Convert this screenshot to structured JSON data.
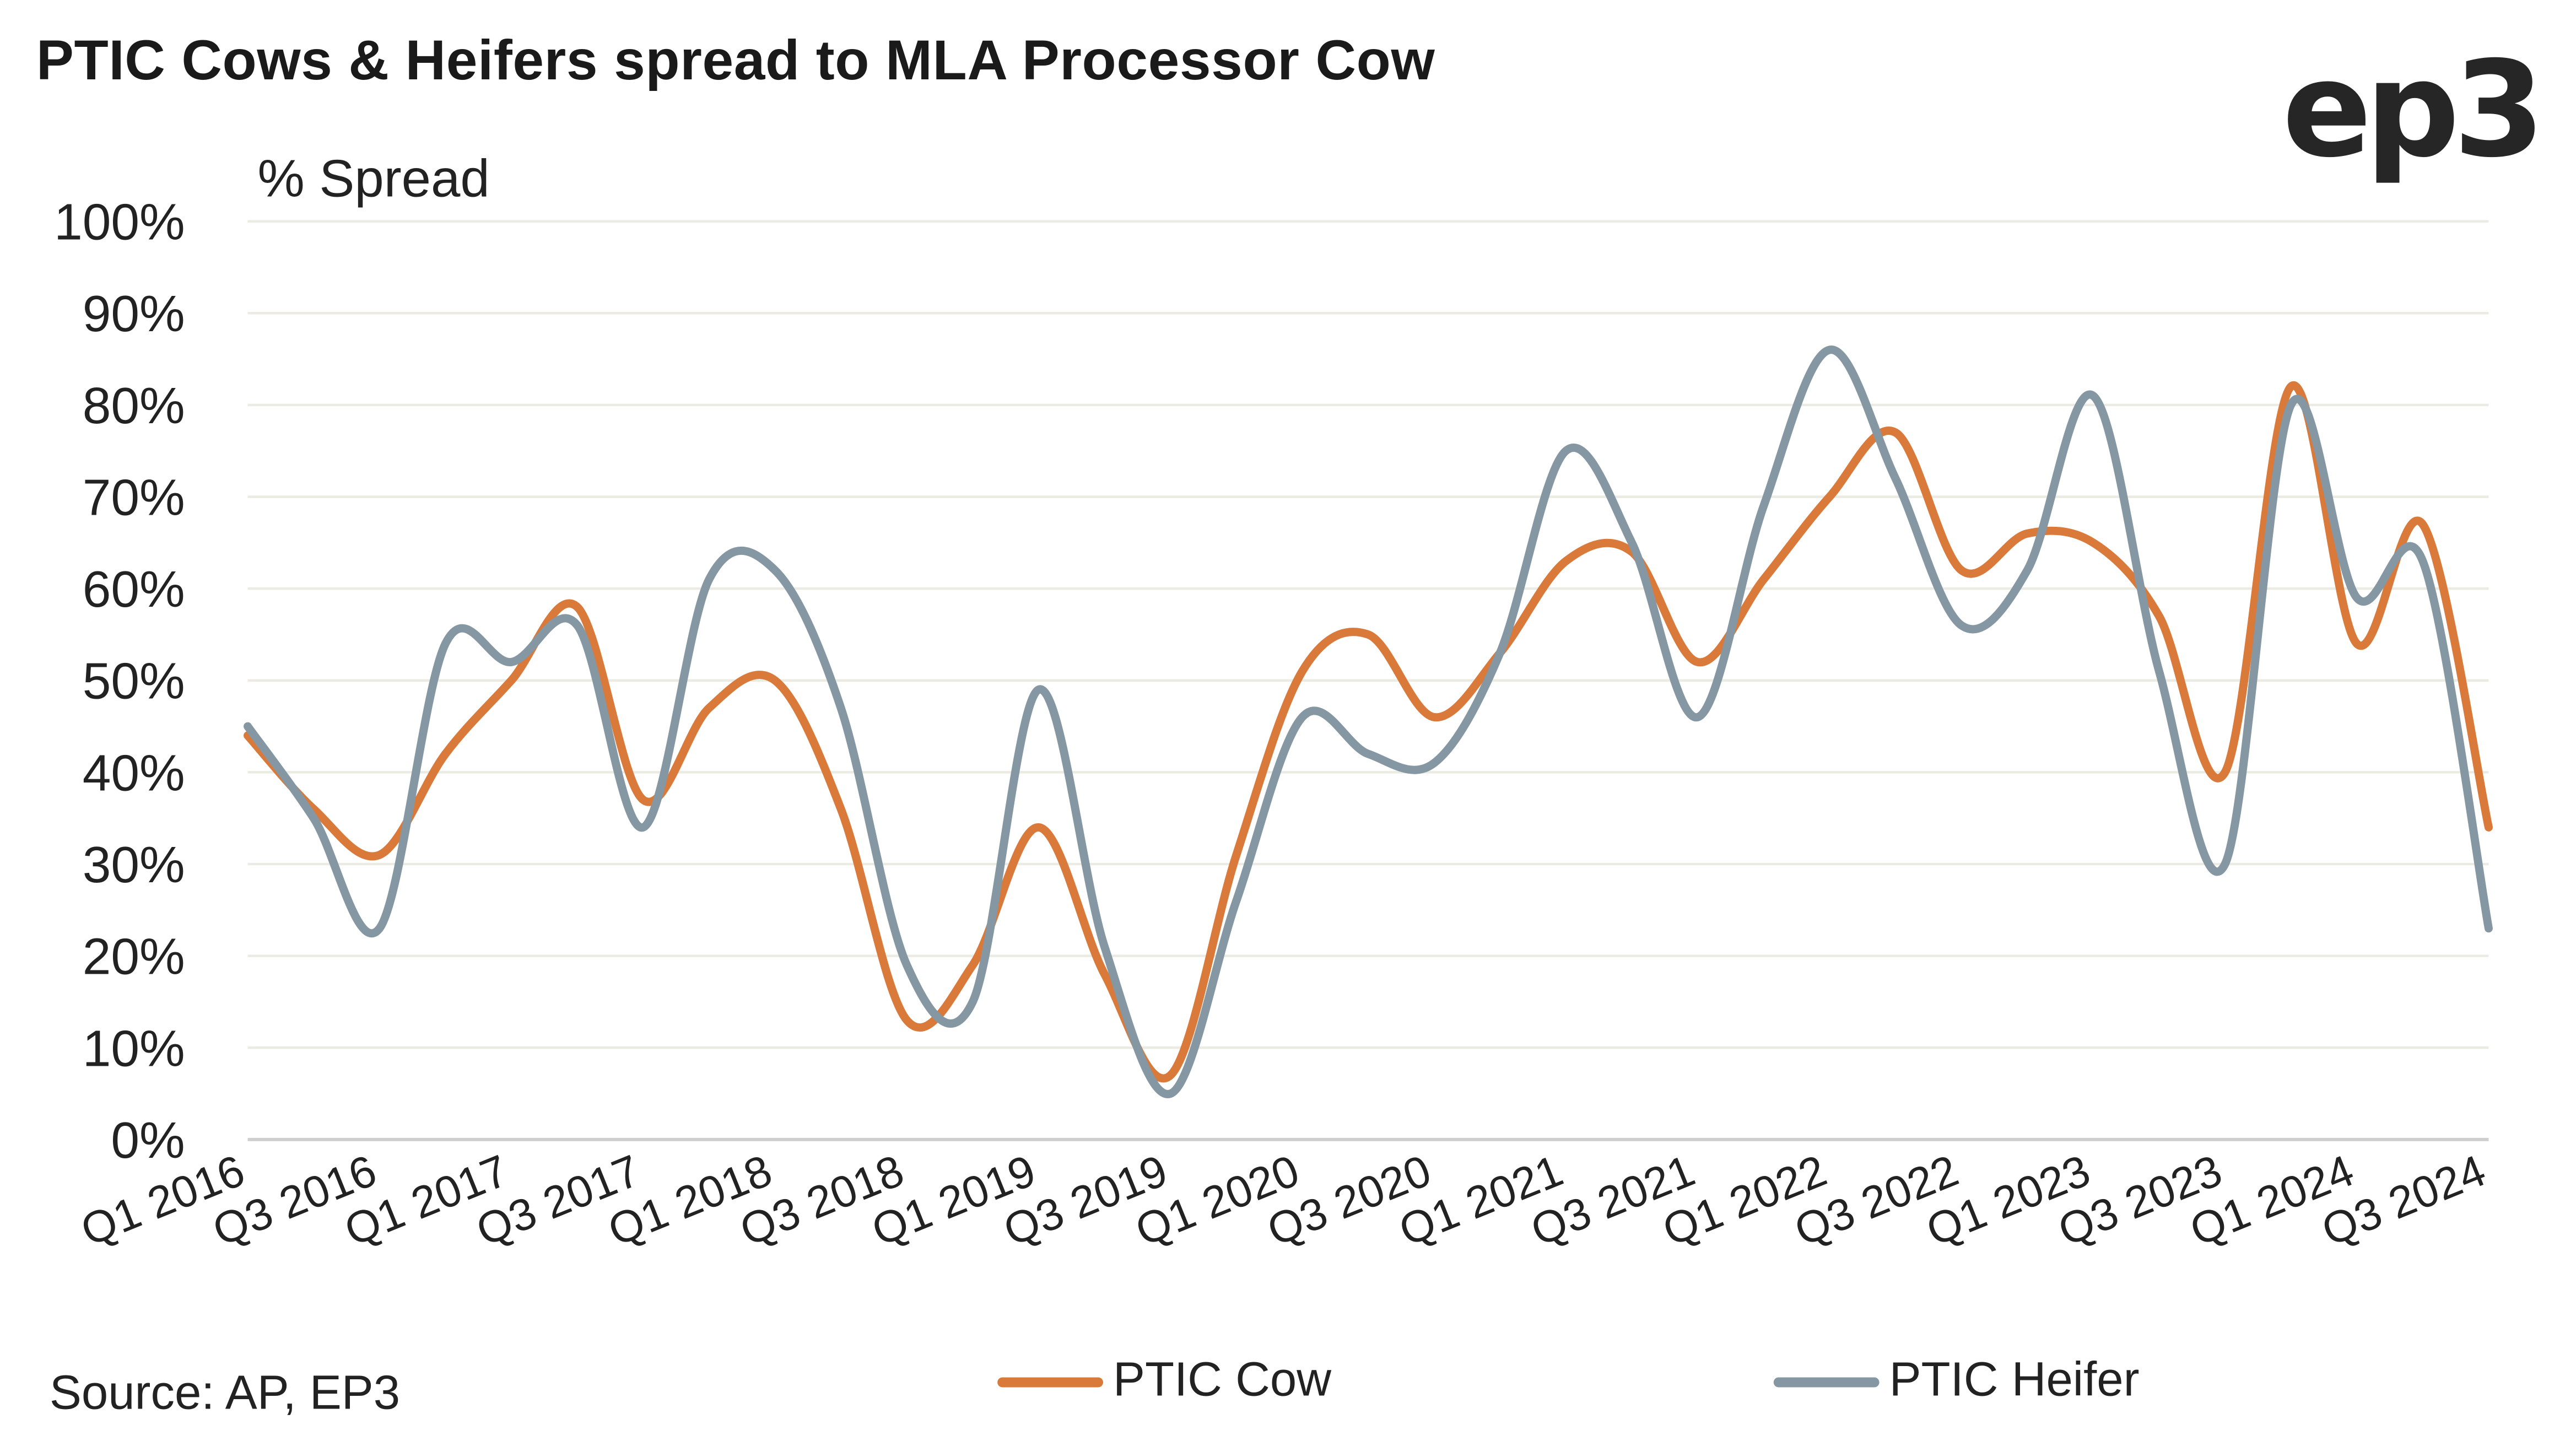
{
  "title": "PTIC Cows & Heifers spread to MLA Processor Cow",
  "logo_text": "ep3",
  "source": "Source: AP, EP3",
  "chart_data": {
    "type": "line",
    "title": "PTIC Cows & Heifers spread to MLA Processor Cow",
    "ylabel": "% Spread",
    "xlabel": "",
    "ylim": [
      0,
      100
    ],
    "yticks": [
      "0%",
      "10%",
      "20%",
      "30%",
      "40%",
      "50%",
      "60%",
      "70%",
      "80%",
      "90%",
      "100%"
    ],
    "grid": true,
    "legend_position": "bottom",
    "x": [
      "Q1 2016",
      "Q2 2016",
      "Q3 2016",
      "Q4 2016",
      "Q1 2017",
      "Q2 2017",
      "Q3 2017",
      "Q4 2017",
      "Q1 2018",
      "Q2 2018",
      "Q3 2018",
      "Q4 2018",
      "Q1 2019",
      "Q2 2019",
      "Q3 2019",
      "Q4 2019",
      "Q1 2020",
      "Q2 2020",
      "Q3 2020",
      "Q4 2020",
      "Q1 2021",
      "Q2 2021",
      "Q3 2021",
      "Q4 2021",
      "Q1 2022",
      "Q2 2022",
      "Q3 2022",
      "Q4 2022",
      "Q1 2023",
      "Q2 2023",
      "Q3 2023",
      "Q4 2023",
      "Q1 2024",
      "Q2 2024",
      "Q3 2024"
    ],
    "xtick_labels": [
      "Q1 2016",
      "Q3 2016",
      "Q1 2017",
      "Q3 2017",
      "Q1 2018",
      "Q3 2018",
      "Q1 2019",
      "Q3 2019",
      "Q1 2020",
      "Q3 2020",
      "Q1 2021",
      "Q3 2021",
      "Q1 2022",
      "Q3 2022",
      "Q1 2023",
      "Q3 2023",
      "Q1 2024",
      "Q3 2024"
    ],
    "series": [
      {
        "name": "PTIC Cow",
        "color": "#D9793A",
        "values": [
          44,
          36,
          31,
          42,
          50,
          58,
          37,
          47,
          50,
          36,
          13,
          19,
          34,
          18,
          7,
          31,
          51,
          55,
          46,
          53,
          63,
          64,
          52,
          61,
          70,
          77,
          62,
          66,
          65,
          57,
          40,
          82,
          54,
          67,
          34
        ]
      },
      {
        "name": "PTIC Heifer",
        "color": "#8497A3",
        "values": [
          45,
          35,
          23,
          54,
          52,
          56,
          34,
          61,
          62,
          47,
          19,
          15,
          49,
          21,
          5,
          26,
          46,
          42,
          41,
          53,
          75,
          65,
          46,
          69,
          86,
          72,
          56,
          62,
          81,
          51,
          30,
          80,
          59,
          63,
          23
        ]
      }
    ]
  }
}
